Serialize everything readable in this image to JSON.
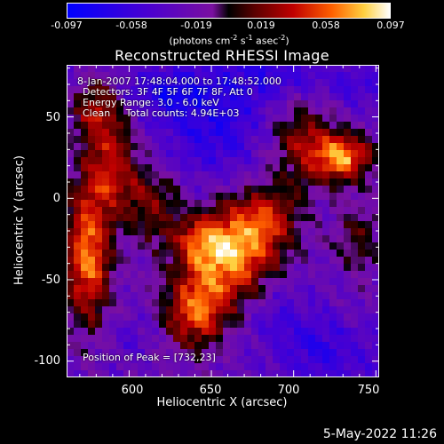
{
  "chart_data": {
    "type": "heatmap",
    "title": "Reconstructed RHESSI Image",
    "xlabel": "Heliocentric X (arcsec)",
    "ylabel": "Heliocentric Y (arcsec)",
    "xlim": [
      562,
      752
    ],
    "ylim": [
      -110,
      82
    ],
    "x_ticks": [
      "600",
      "650",
      "700",
      "750"
    ],
    "y_ticks": [
      "50",
      "0",
      "-50",
      "-100"
    ],
    "colorbar": {
      "ticks": [
        "-0.097",
        "-0.058",
        "-0.019",
        "0.019",
        "0.058",
        "0.097"
      ],
      "range": [
        -0.097,
        0.097
      ]
    },
    "annotations": {
      "time_range": "8-Jan-2007 17:48:04.000 to 17:48:52.000",
      "detectors": "Detectors: 3F 4F 5F 6F 7F 8F, Att 0",
      "energy": "Energy Range: 3.0 - 6.0 keV",
      "method": "Clean     Total counts: 4.94E+03",
      "peak": "Position of Peak = [732,23]"
    },
    "peak_position": [
      732,
      23
    ],
    "colormap": "blue-purple-red-yellow-white",
    "blobs": [
      {
        "x": 730,
        "y": 25,
        "sx": 12,
        "sy": 10,
        "a": 1.0
      },
      {
        "x": 705,
        "y": 35,
        "sx": 14,
        "sy": 20,
        "a": 0.55
      },
      {
        "x": 680,
        "y": -15,
        "sx": 16,
        "sy": 16,
        "a": 0.75
      },
      {
        "x": 660,
        "y": -40,
        "sx": 18,
        "sy": 18,
        "a": 0.85
      },
      {
        "x": 640,
        "y": -70,
        "sx": 14,
        "sy": 16,
        "a": 0.8
      },
      {
        "x": 645,
        "y": -25,
        "sx": 12,
        "sy": 12,
        "a": 0.55
      },
      {
        "x": 575,
        "y": -35,
        "sx": 10,
        "sy": 30,
        "a": 0.95
      },
      {
        "x": 590,
        "y": 20,
        "sx": 12,
        "sy": 22,
        "a": 0.65
      },
      {
        "x": 580,
        "y": 55,
        "sx": 10,
        "sy": 12,
        "a": 0.6
      },
      {
        "x": 740,
        "y": -25,
        "sx": 10,
        "sy": 18,
        "a": 0.35
      },
      {
        "x": 615,
        "y": -5,
        "sx": 12,
        "sy": 18,
        "a": 0.45
      },
      {
        "x": 620,
        "y": 65,
        "sx": 18,
        "sy": 10,
        "a": -0.35
      },
      {
        "x": 650,
        "y": 50,
        "sx": 25,
        "sy": 25,
        "a": -0.45
      },
      {
        "x": 690,
        "y": 75,
        "sx": 20,
        "sy": 12,
        "a": -0.3
      },
      {
        "x": 720,
        "y": -95,
        "sx": 22,
        "sy": 15,
        "a": -0.35
      },
      {
        "x": 690,
        "y": -70,
        "sx": 15,
        "sy": 15,
        "a": -0.2
      },
      {
        "x": 600,
        "y": -85,
        "sx": 12,
        "sy": 12,
        "a": -0.15
      },
      {
        "x": 735,
        "y": 70,
        "sx": 15,
        "sy": 10,
        "a": -0.25
      }
    ]
  },
  "footer": {
    "timestamp": "5-May-2022 11:26"
  }
}
